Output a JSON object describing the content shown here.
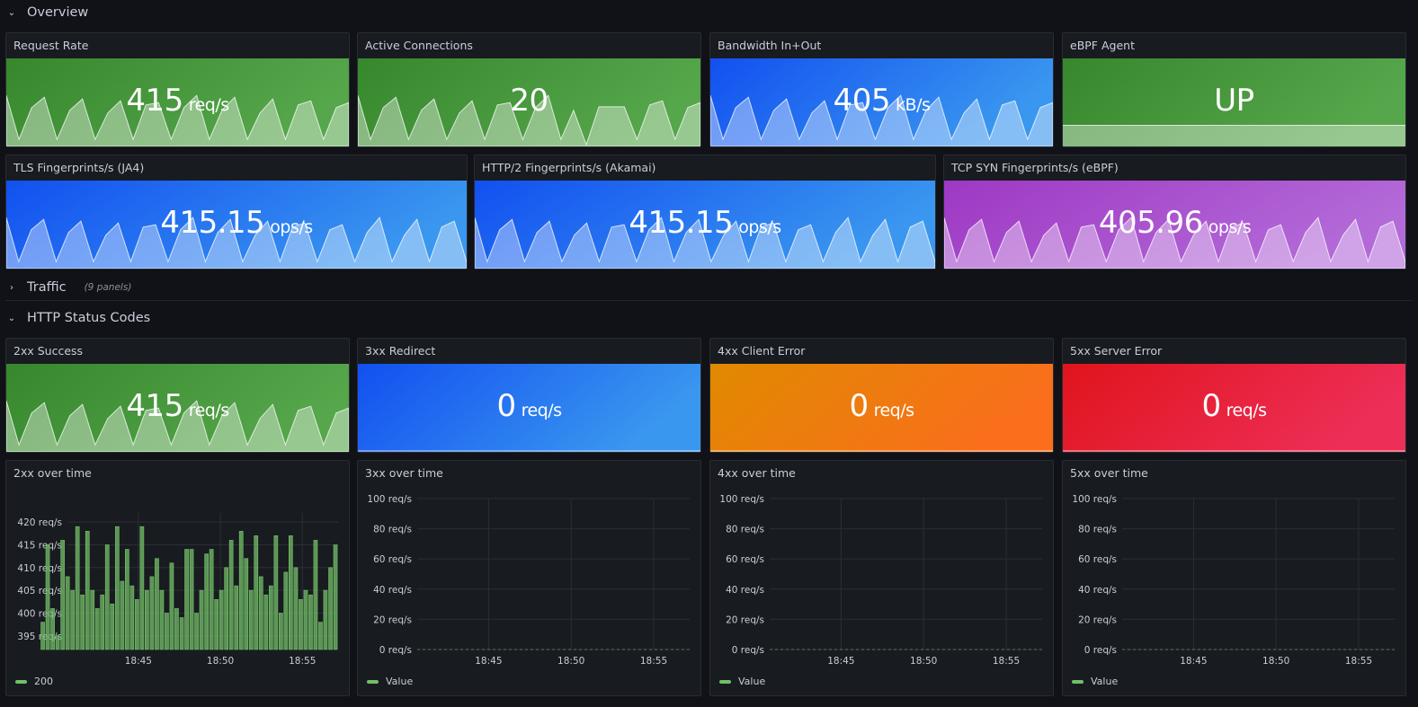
{
  "rows": {
    "overview": {
      "title": "Overview",
      "chevron": "chevron-down-icon"
    },
    "traffic": {
      "title": "Traffic",
      "subtitle": "(9 panels)",
      "chevron": "chevron-right-icon"
    },
    "http_status": {
      "title": "HTTP Status Codes",
      "chevron": "chevron-down-icon"
    }
  },
  "stats": {
    "request_rate": {
      "title": "Request Rate",
      "value": "415",
      "unit": "req/s",
      "color_a": "#37872d",
      "color_b": "#56a64b",
      "sparkline": true
    },
    "active_connections": {
      "title": "Active Connections",
      "value": "20",
      "unit": "",
      "color_a": "#37872d",
      "color_b": "#56a64b",
      "sparkline": true
    },
    "bandwidth": {
      "title": "Bandwidth In+Out",
      "value": "405",
      "unit": "kB/s",
      "color_a": "#1250f0",
      "color_b": "#3a97ef",
      "sparkline": true
    },
    "ebpf_agent": {
      "title": "eBPF Agent",
      "value": "UP",
      "unit": "",
      "color_a": "#37872d",
      "color_b": "#56a64b",
      "sparkline": false
    },
    "tls_fp": {
      "title": "TLS Fingerprints/s (JA4)",
      "value": "415.15",
      "unit": "ops/s",
      "color_a": "#1250f0",
      "color_b": "#3a97ef",
      "sparkline": true
    },
    "http2_fp": {
      "title": "HTTP/2 Fingerprints/s (Akamai)",
      "value": "415.15",
      "unit": "ops/s",
      "color_a": "#1250f0",
      "color_b": "#3a97ef",
      "sparkline": true
    },
    "tcp_fp": {
      "title": "TCP SYN Fingerprints/s (eBPF)",
      "value": "405.96",
      "unit": "ops/s",
      "color_a": "#9e38c4",
      "color_b": "#b36ad8",
      "sparkline": true
    },
    "s2xx": {
      "title": "2xx Success",
      "value": "415",
      "unit": "req/s",
      "color_a": "#37872d",
      "color_b": "#56a64b",
      "sparkline": true
    },
    "s3xx": {
      "title": "3xx Redirect",
      "value": "0",
      "unit": "req/s",
      "color_a": "#1250f0",
      "color_b": "#3a97ef",
      "sparkline": false
    },
    "s4xx": {
      "title": "4xx Client Error",
      "value": "0",
      "unit": "req/s",
      "color_a": "#e08a00",
      "color_b": "#fa6e1c",
      "sparkline": false
    },
    "s5xx": {
      "title": "5xx Server Error",
      "value": "0",
      "unit": "req/s",
      "color_a": "#e0141c",
      "color_b": "#ed2e57",
      "sparkline": false
    }
  },
  "timeseries": {
    "t2xx": {
      "title": "2xx over time",
      "legend": "200"
    },
    "t3xx": {
      "title": "3xx over time",
      "legend": "Value"
    },
    "t4xx": {
      "title": "4xx over time",
      "legend": "Value"
    },
    "t5xx": {
      "title": "5xx over time",
      "legend": "Value"
    }
  },
  "chart_data": [
    {
      "type": "bar",
      "title": "2xx over time",
      "series": [
        {
          "name": "200",
          "color": "#73bf69",
          "values": [
            398,
            415,
            401,
            395,
            416,
            408,
            405,
            419,
            404,
            418,
            405,
            401,
            404,
            415,
            402,
            419,
            407,
            414,
            406,
            403,
            419,
            405,
            408,
            412,
            405,
            400,
            411,
            401,
            399,
            414,
            414,
            400,
            405,
            413,
            414,
            403,
            405,
            410,
            416,
            406,
            418,
            412,
            405,
            417,
            408,
            404,
            406,
            417,
            400,
            409,
            417,
            410,
            403,
            405,
            404,
            416,
            398,
            405,
            410,
            415
          ]
        }
      ],
      "x_ticks": [
        "18:45",
        "18:50",
        "18:55"
      ],
      "y_ticks": [
        "395 req/s",
        "400 req/s",
        "405 req/s",
        "410 req/s",
        "415 req/s",
        "420 req/s"
      ],
      "ylim": [
        392,
        422
      ]
    },
    {
      "type": "line",
      "title": "3xx over time",
      "series": [
        {
          "name": "Value",
          "color": "#73bf69",
          "values": [
            0,
            0
          ]
        }
      ],
      "x_ticks": [
        "18:45",
        "18:50",
        "18:55"
      ],
      "y_ticks": [
        "0 req/s",
        "20 req/s",
        "40 req/s",
        "60 req/s",
        "80 req/s",
        "100 req/s"
      ],
      "ylim": [
        0,
        100
      ]
    },
    {
      "type": "line",
      "title": "4xx over time",
      "series": [
        {
          "name": "Value",
          "color": "#73bf69",
          "values": [
            0,
            0
          ]
        }
      ],
      "x_ticks": [
        "18:45",
        "18:50",
        "18:55"
      ],
      "y_ticks": [
        "0 req/s",
        "20 req/s",
        "40 req/s",
        "60 req/s",
        "80 req/s",
        "100 req/s"
      ],
      "ylim": [
        0,
        100
      ]
    },
    {
      "type": "line",
      "title": "5xx over time",
      "series": [
        {
          "name": "Value",
          "color": "#73bf69",
          "values": [
            0,
            0
          ]
        }
      ],
      "x_ticks": [
        "18:45",
        "18:50",
        "18:55"
      ],
      "y_ticks": [
        "0 req/s",
        "20 req/s",
        "40 req/s",
        "60 req/s",
        "80 req/s",
        "100 req/s"
      ],
      "ylim": [
        0,
        100
      ]
    }
  ]
}
